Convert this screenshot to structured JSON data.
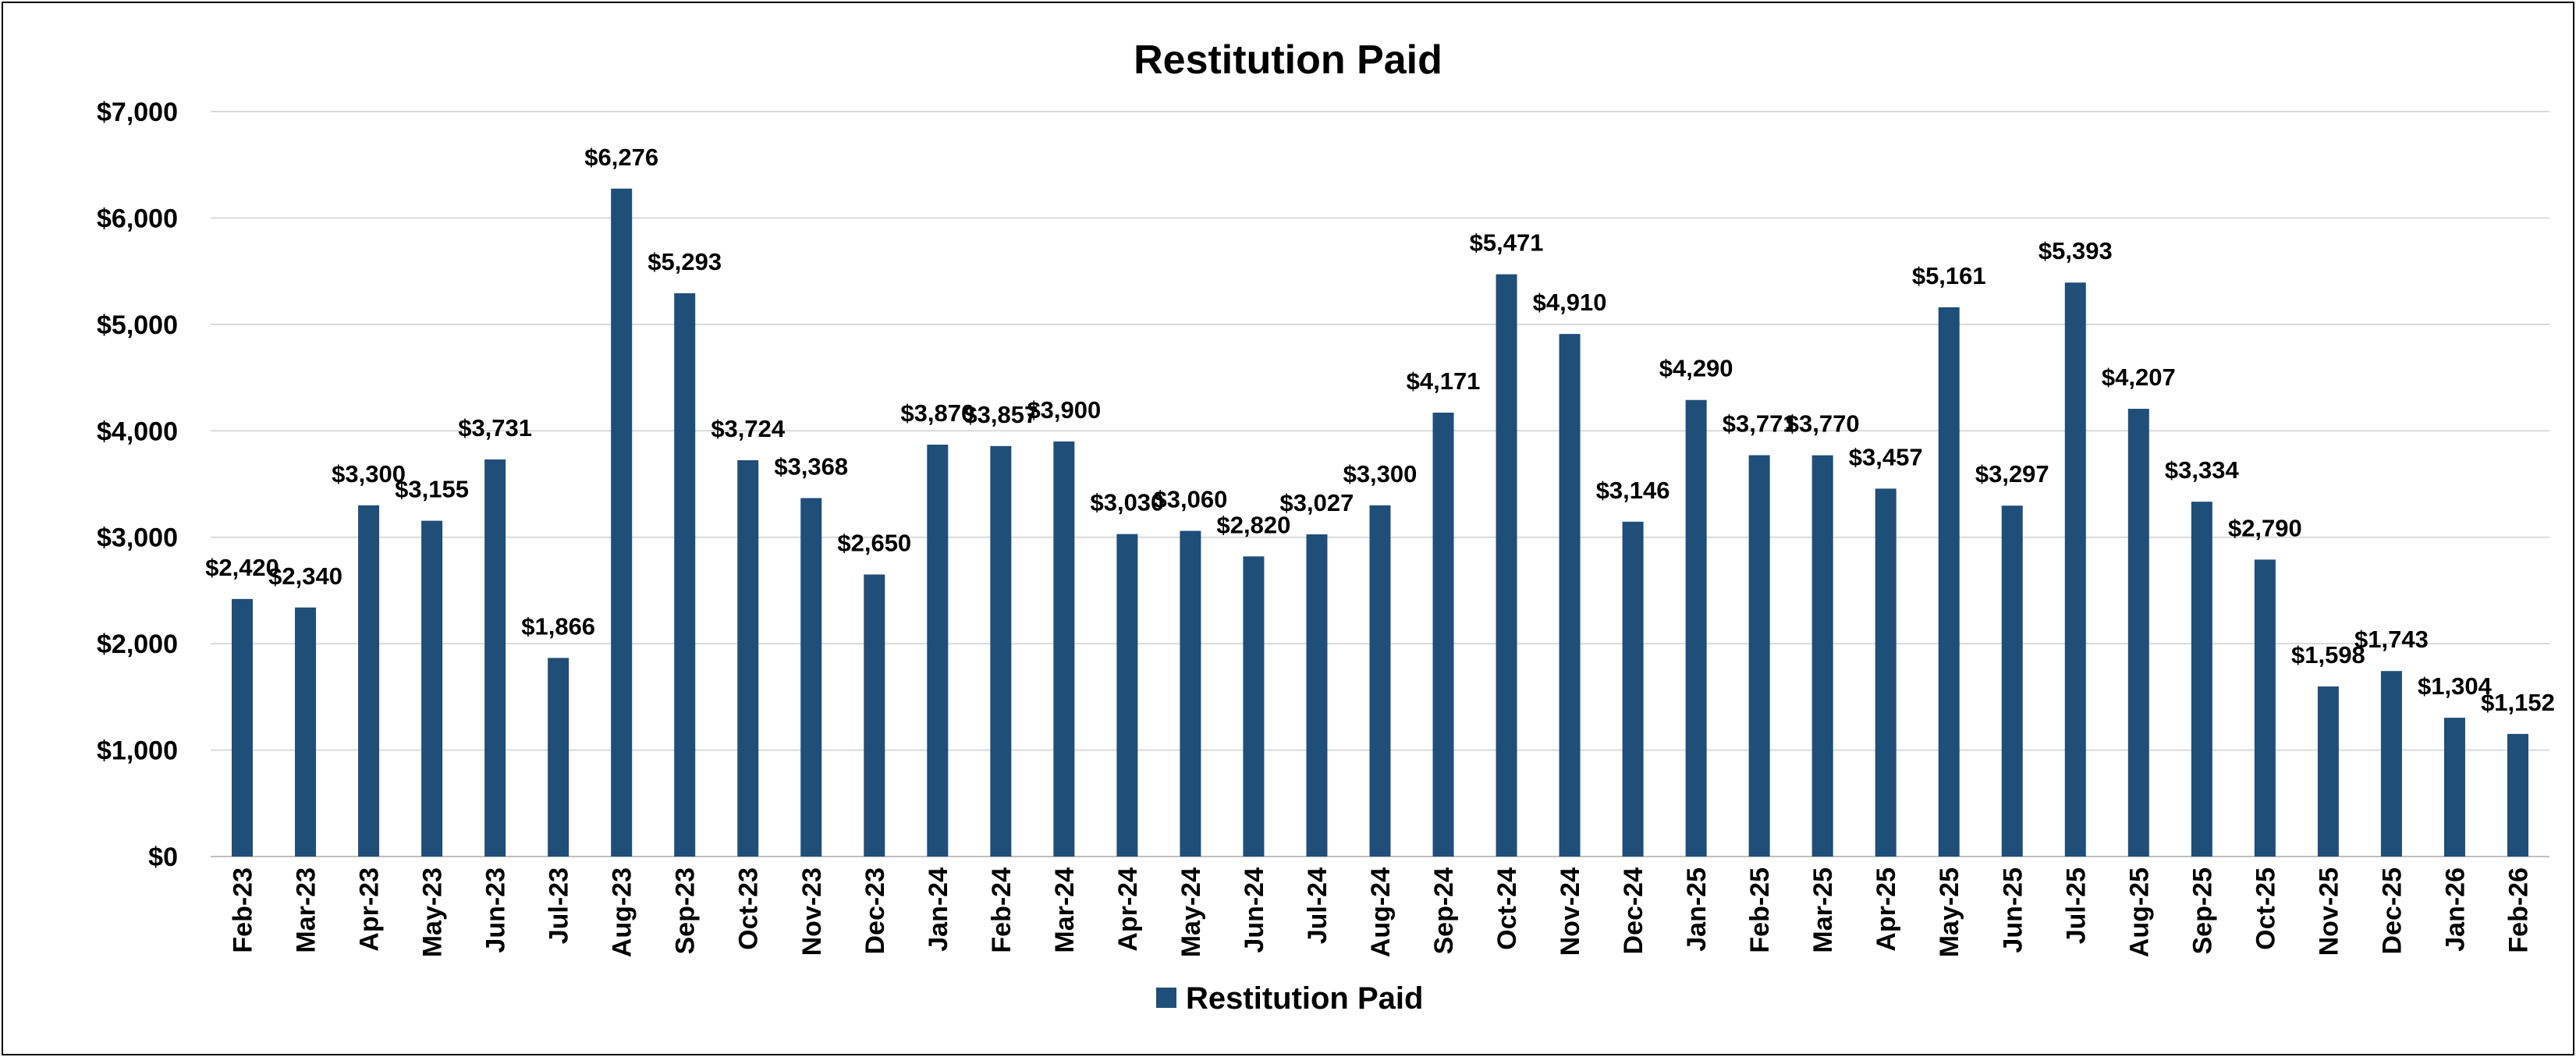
{
  "chart_data": {
    "type": "bar",
    "title": "Restitution Paid",
    "xlabel": "",
    "ylabel": "",
    "ylim": [
      0,
      7000
    ],
    "y_ticks": [
      0,
      1000,
      2000,
      3000,
      4000,
      5000,
      6000,
      7000
    ],
    "y_tick_labels": [
      "$0",
      "$1,000",
      "$2,000",
      "$3,000",
      "$4,000",
      "$5,000",
      "$6,000",
      "$7,000"
    ],
    "grid": true,
    "legend_position": "bottom",
    "bar_color": "#1F4E79",
    "categories": [
      "Feb-23",
      "Mar-23",
      "Apr-23",
      "May-23",
      "Jun-23",
      "Jul-23",
      "Aug-23",
      "Sep-23",
      "Oct-23",
      "Nov-23",
      "Dec-23",
      "Jan-24",
      "Feb-24",
      "Mar-24",
      "Apr-24",
      "May-24",
      "Jun-24",
      "Jul-24",
      "Aug-24",
      "Sep-24",
      "Oct-24",
      "Nov-24",
      "Dec-24",
      "Jan-25",
      "Feb-25",
      "Mar-25",
      "Apr-25",
      "May-25",
      "Jun-25",
      "Jul-25",
      "Aug-25",
      "Sep-25",
      "Oct-25",
      "Nov-25",
      "Dec-25",
      "Jan-26",
      "Feb-26"
    ],
    "series": [
      {
        "name": "Restitution Paid",
        "values": [
          2420,
          2340,
          3300,
          3155,
          3731,
          1866,
          6276,
          5293,
          3724,
          3368,
          2650,
          3870,
          3857,
          3900,
          3030,
          3060,
          2820,
          3027,
          3300,
          4171,
          5471,
          4910,
          3146,
          4290,
          3771,
          3770,
          3457,
          5161,
          3297,
          5393,
          4207,
          3334,
          2790,
          1598,
          1743,
          1304,
          1152
        ],
        "data_labels": [
          "$2,420",
          "$2,340",
          "$3,300",
          "$3,155",
          "$3,731",
          "$1,866",
          "$6,276",
          "$5,293",
          "$3,724",
          "$3,368",
          "$2,650",
          "$3,870",
          "$3,857",
          "$3,900",
          "$3,030",
          "$3,060",
          "$2,820",
          "$3,027",
          "$3,300",
          "$4,171",
          "$5,471",
          "$4,910",
          "$3,146",
          "$4,290",
          "$3,771",
          "$3,770",
          "$3,457",
          "$5,161",
          "$3,297",
          "$5,393",
          "$4,207",
          "$3,334",
          "$2,790",
          "$1,598",
          "$1,743",
          "$1,304",
          "$1,152"
        ]
      }
    ]
  }
}
